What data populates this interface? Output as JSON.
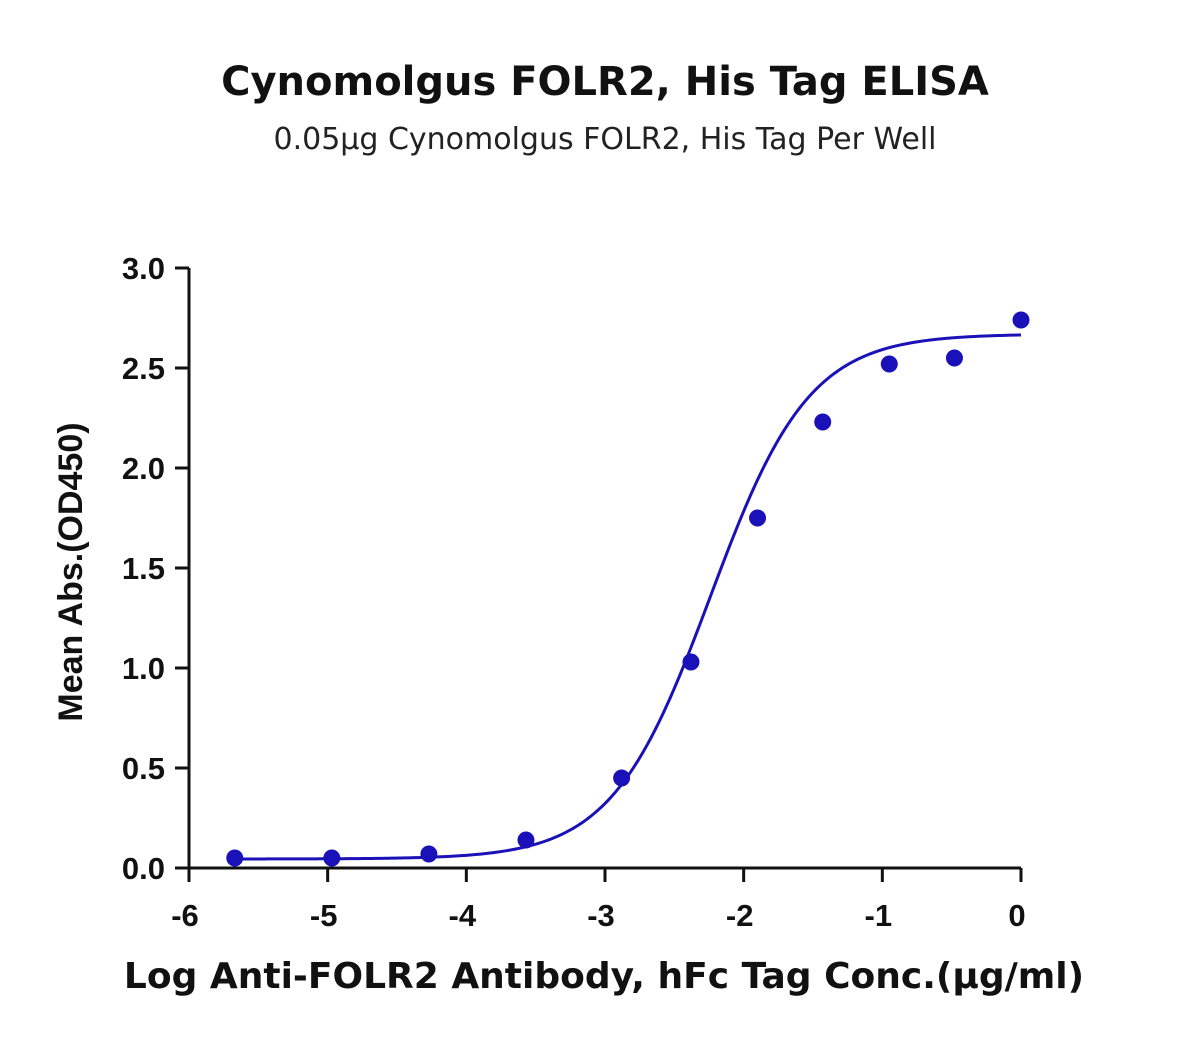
{
  "chart_data": {
    "type": "scatter",
    "title": "Cynomolgus FOLR2, His Tag ELISA",
    "subtitle": "0.05μg Cynomolgus FOLR2, His Tag Per Well",
    "xlabel": "Log Anti-FOLR2 Antibody, hFc Tag Conc.(μg/ml)",
    "ylabel": "Mean Abs.(OD450)",
    "xlim": [
      -6,
      0
    ],
    "ylim": [
      0,
      3.0
    ],
    "xticks": [
      "-6",
      "-5",
      "-4",
      "-3",
      "-2",
      "-1",
      "0"
    ],
    "xtick_values": [
      -6,
      -5,
      -4,
      -3,
      -2,
      -1,
      0
    ],
    "yticks": [
      "0.0",
      "0.5",
      "1.0",
      "1.5",
      "2.0",
      "2.5",
      "3.0"
    ],
    "ytick_values": [
      0,
      0.5,
      1.0,
      1.5,
      2.0,
      2.5,
      3.0
    ],
    "series": [
      {
        "color": "#1a12b8",
        "x": [
          -5.67,
          -4.97,
          -4.27,
          -3.57,
          -2.88,
          -2.38,
          -1.9,
          -1.43,
          -0.95,
          -0.48,
          0.0
        ],
        "y": [
          0.05,
          0.05,
          0.07,
          0.14,
          0.45,
          1.03,
          1.75,
          2.23,
          2.52,
          2.55,
          2.74
        ]
      }
    ],
    "fit_curve": {
      "type": "4PL",
      "color": "#1a12b8",
      "bottom": 0.045,
      "top": 2.67,
      "logEC50": -2.24,
      "hill": 1.22,
      "x_range": [
        -5.67,
        0.0
      ]
    },
    "grid": false,
    "legend": "none"
  }
}
